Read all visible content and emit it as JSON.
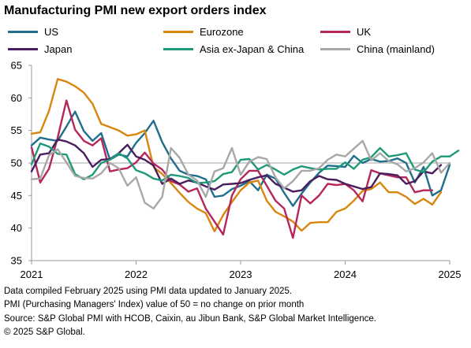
{
  "chart_data": {
    "type": "line",
    "title": "Manufacturing PMI new export orders index",
    "xlabel": "",
    "ylabel": "",
    "x_ticks": [
      "2021",
      "2022",
      "2023",
      "2024",
      "2025"
    ],
    "x_start": "2021-01",
    "ylim": [
      35,
      65
    ],
    "y_ticks": [
      35,
      40,
      45,
      50,
      55,
      60,
      65
    ],
    "reference_line": 50,
    "grid": false,
    "legend": "top",
    "series": [
      {
        "name": "US",
        "color": "#1f6e8c",
        "values": [
          52.7,
          53.9,
          53.6,
          53.4,
          55.6,
          57.9,
          54.9,
          53.4,
          54.6,
          50.5,
          51.3,
          51.0,
          53.1,
          54.6,
          56.5,
          53.2,
          50.7,
          48.8,
          48.2,
          48.0,
          47.5,
          44.8,
          45.0,
          46.0,
          46.5,
          47.2,
          45.8,
          48.2,
          47.6,
          45.4,
          43.4,
          45.3,
          47.0,
          48.5,
          49.6,
          49.5,
          49.4,
          51.1,
          50.0,
          50.6,
          50.2,
          50.3,
          50.7,
          50.0,
          47.0,
          49.4,
          45.0,
          45.8,
          49.7
        ]
      },
      {
        "name": "Eurozone",
        "color": "#d8860d",
        "values": [
          54.5,
          54.7,
          58.0,
          62.9,
          62.5,
          61.8,
          60.8,
          59.1,
          56.0,
          55.5,
          55.0,
          54.2,
          54.4,
          55.0,
          49.4,
          48.3,
          46.9,
          45.4,
          44.0,
          43.0,
          42.3,
          39.5,
          42.0,
          44.0,
          45.8,
          47.0,
          47.3,
          44.2,
          42.5,
          41.8,
          41.0,
          39.6,
          40.8,
          40.9,
          40.9,
          42.5,
          43.0,
          44.2,
          45.7,
          46.0,
          47.0,
          45.5,
          45.5,
          44.8,
          43.7,
          44.5,
          43.6,
          45.5
        ]
      },
      {
        "name": "UK",
        "color": "#b5275c",
        "values": [
          52.4,
          47.0,
          49.1,
          53.9,
          59.6,
          55.1,
          53.4,
          52.7,
          53.8,
          48.7,
          49.0,
          49.2,
          50.1,
          51.6,
          49.9,
          49.0,
          47.2,
          46.7,
          45.6,
          46.1,
          43.0,
          41.0,
          39.0,
          45.0,
          47.5,
          48.8,
          48.8,
          46.5,
          44.2,
          43.0,
          38.5,
          45.0,
          43.8,
          45.0,
          46.8,
          46.6,
          46.8,
          45.8,
          44.1,
          48.9,
          48.4,
          48.1,
          47.8,
          47.8,
          45.5,
          45.8,
          45.8
        ]
      },
      {
        "name": "Japan",
        "color": "#4a1e5e",
        "values": [
          48.7,
          51.3,
          51.5,
          53.6,
          53.3,
          52.7,
          51.5,
          49.4,
          50.5,
          50.6,
          51.5,
          52.8,
          51.0,
          50.5,
          49.6,
          46.8,
          47.6,
          46.8,
          47.3,
          47.0,
          46.4,
          45.9,
          46.7,
          46.8,
          46.9,
          47.4,
          47.8,
          48.1,
          46.8,
          46.2,
          45.6,
          45.8,
          47.2,
          48.0,
          47.5,
          47.4,
          46.8,
          46.4,
          46.0,
          46.3,
          48.4,
          48.3,
          48.1,
          46.8,
          47.2,
          48.7,
          48.4,
          49.7
        ]
      },
      {
        "name": "Asia ex-Japan & China",
        "color": "#1f9978",
        "values": [
          49.8,
          53.0,
          52.5,
          51.4,
          51.3,
          48.3,
          47.5,
          48.2,
          50.0,
          50.5,
          51.5,
          50.7,
          48.9,
          48.4,
          47.6,
          47.3,
          48.2,
          48.0,
          47.7,
          46.9,
          47.0,
          47.2,
          48.3,
          48.6,
          50.5,
          50.6,
          49.0,
          49.7,
          49.0,
          48.2,
          49.0,
          49.5,
          49.2,
          49.0,
          49.1,
          49.1,
          50.1,
          49.1,
          50.5,
          50.9,
          52.3,
          51.0,
          51.2,
          51.5,
          49.0,
          48.6,
          50.2,
          51.0,
          51.0,
          51.9
        ]
      },
      {
        "name": "China (mainland)",
        "color": "#a8a8a8",
        "values": [
          47.5,
          47.6,
          51.2,
          52.1,
          50.1,
          48.0,
          47.7,
          47.6,
          48.4,
          50.0,
          49.2,
          46.5,
          47.8,
          43.9,
          43.0,
          44.8,
          52.3,
          50.8,
          48.2,
          47.3,
          44.8,
          48.7,
          49.2,
          52.3,
          48.2,
          50.2,
          50.9,
          50.6,
          47.8,
          46.1,
          47.2,
          48.8,
          48.8,
          49.2,
          50.5,
          51.3,
          51.0,
          52.2,
          53.4,
          50.4,
          51.5,
          50.3,
          49.8,
          48.7,
          49.2,
          50.1,
          51.5,
          48.5,
          50.0
        ]
      }
    ]
  },
  "footnotes": [
    "Data compiled February 2025 using PMI data updated to January 2025.",
    "PMI (Purchasing Managers' Index) value of 50 = no change on prior month",
    "Source: S&P Global PMI with HCOB, Caixin, au Jibun Bank, S&P Global Market Intelligence.",
    "© 2025 S&P Global."
  ]
}
